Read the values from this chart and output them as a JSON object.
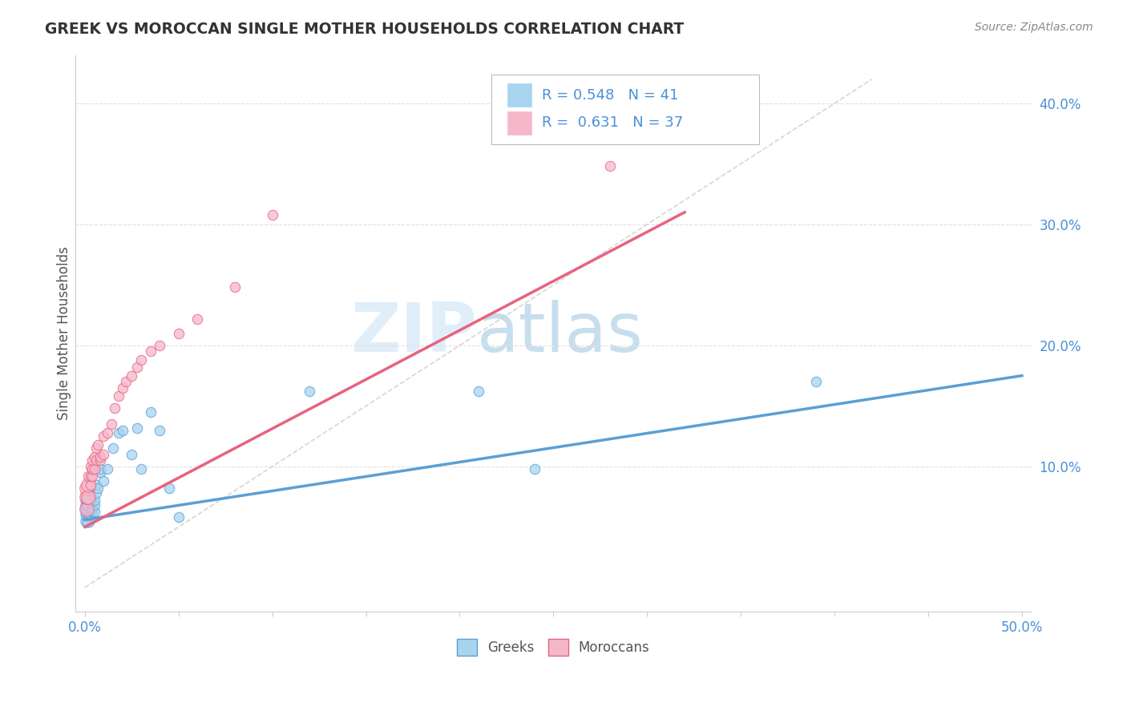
{
  "title": "GREEK VS MOROCCAN SINGLE MOTHER HOUSEHOLDS CORRELATION CHART",
  "source": "Source: ZipAtlas.com",
  "ylabel": "Single Mother Households",
  "xlim": [
    -0.005,
    0.505
  ],
  "ylim": [
    -0.02,
    0.44
  ],
  "xticks": [
    0.0,
    0.5
  ],
  "xticklabels": [
    "0.0%",
    "50.0%"
  ],
  "yticks": [
    0.1,
    0.2,
    0.3,
    0.4
  ],
  "yticklabels": [
    "10.0%",
    "20.0%",
    "30.0%",
    "40.0%"
  ],
  "greek_R": 0.548,
  "greek_N": 41,
  "moroccan_R": 0.631,
  "moroccan_N": 37,
  "greek_color": "#a8d4f0",
  "moroccan_color": "#f5b8cb",
  "greek_line_color": "#5b9fd4",
  "moroccan_line_color": "#e8637e",
  "ref_line_color": "#cccccc",
  "watermark_zip": "ZIP",
  "watermark_atlas": "atlas",
  "background_color": "#ffffff",
  "legend_color": "#4a90d9",
  "title_color": "#333333",
  "axis_label_color": "#555555",
  "tick_color": "#4a90d9",
  "greeks_x": [
    0.001,
    0.001,
    0.001,
    0.001,
    0.001,
    0.002,
    0.002,
    0.002,
    0.002,
    0.002,
    0.003,
    0.003,
    0.003,
    0.003,
    0.004,
    0.004,
    0.004,
    0.005,
    0.005,
    0.005,
    0.006,
    0.006,
    0.007,
    0.008,
    0.008,
    0.01,
    0.012,
    0.015,
    0.018,
    0.02,
    0.025,
    0.028,
    0.03,
    0.035,
    0.04,
    0.045,
    0.05,
    0.12,
    0.21,
    0.24,
    0.39
  ],
  "greeks_y": [
    0.055,
    0.06,
    0.065,
    0.068,
    0.072,
    0.055,
    0.06,
    0.062,
    0.065,
    0.068,
    0.06,
    0.063,
    0.065,
    0.072,
    0.063,
    0.065,
    0.07,
    0.063,
    0.068,
    0.072,
    0.078,
    0.085,
    0.082,
    0.095,
    0.098,
    0.088,
    0.098,
    0.115,
    0.128,
    0.13,
    0.11,
    0.132,
    0.098,
    0.145,
    0.13,
    0.082,
    0.058,
    0.162,
    0.162,
    0.098,
    0.17
  ],
  "moroccans_x": [
    0.001,
    0.001,
    0.001,
    0.002,
    0.002,
    0.002,
    0.003,
    0.003,
    0.003,
    0.004,
    0.004,
    0.004,
    0.005,
    0.005,
    0.006,
    0.006,
    0.007,
    0.008,
    0.008,
    0.01,
    0.01,
    0.012,
    0.014,
    0.016,
    0.018,
    0.02,
    0.022,
    0.025,
    0.028,
    0.03,
    0.035,
    0.04,
    0.05,
    0.06,
    0.08,
    0.1,
    0.28
  ],
  "moroccans_y": [
    0.065,
    0.075,
    0.082,
    0.075,
    0.085,
    0.092,
    0.085,
    0.092,
    0.1,
    0.092,
    0.098,
    0.105,
    0.098,
    0.108,
    0.105,
    0.115,
    0.118,
    0.105,
    0.108,
    0.11,
    0.125,
    0.128,
    0.135,
    0.148,
    0.158,
    0.165,
    0.17,
    0.175,
    0.182,
    0.188,
    0.195,
    0.2,
    0.21,
    0.222,
    0.248,
    0.308,
    0.348
  ],
  "greek_line_x0": 0.0,
  "greek_line_x1": 0.5,
  "greek_line_y0": 0.056,
  "greek_line_y1": 0.175,
  "moroccan_line_x0": 0.0,
  "moroccan_line_x1": 0.32,
  "moroccan_line_y0": 0.05,
  "moroccan_line_y1": 0.31
}
